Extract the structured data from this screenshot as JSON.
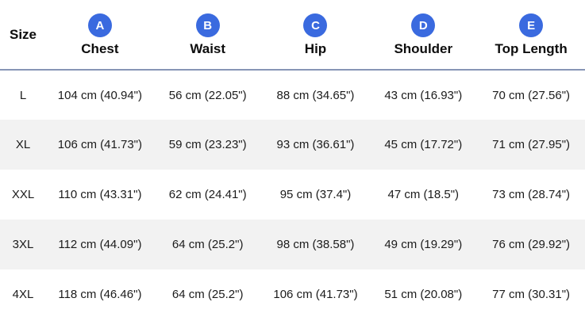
{
  "chart_data": {
    "type": "table",
    "size_header": "Size",
    "columns": [
      {
        "badge": "A",
        "label": "Chest"
      },
      {
        "badge": "B",
        "label": "Waist"
      },
      {
        "badge": "C",
        "label": "Hip"
      },
      {
        "badge": "D",
        "label": "Shoulder"
      },
      {
        "badge": "E",
        "label": "Top Length"
      }
    ],
    "rows": [
      {
        "size": "L",
        "values": [
          "104 cm (40.94\")",
          "56 cm (22.05\")",
          "88 cm (34.65\")",
          "43 cm (16.93\")",
          "70 cm (27.56\")"
        ]
      },
      {
        "size": "XL",
        "values": [
          "106 cm (41.73\")",
          "59 cm (23.23\")",
          "93 cm (36.61\")",
          "45 cm (17.72\")",
          "71 cm (27.95\")"
        ]
      },
      {
        "size": "XXL",
        "values": [
          "110 cm (43.31\")",
          "62 cm (24.41\")",
          "95 cm (37.4\")",
          "47 cm (18.5\")",
          "73 cm (28.74\")"
        ]
      },
      {
        "size": "3XL",
        "values": [
          "112 cm (44.09\")",
          "64 cm (25.2\")",
          "98 cm (38.58\")",
          "49 cm (19.29\")",
          "76 cm (29.92\")"
        ]
      },
      {
        "size": "4XL",
        "values": [
          "118 cm (46.46\")",
          "64 cm (25.2\")",
          "106 cm (41.73\")",
          "51 cm (20.08\")",
          "77 cm (30.31\")"
        ]
      }
    ],
    "colors": {
      "badge_blue": "#3a6adf",
      "stripe_gray": "#f2f2f2",
      "header_rule": "#8795b5"
    }
  }
}
